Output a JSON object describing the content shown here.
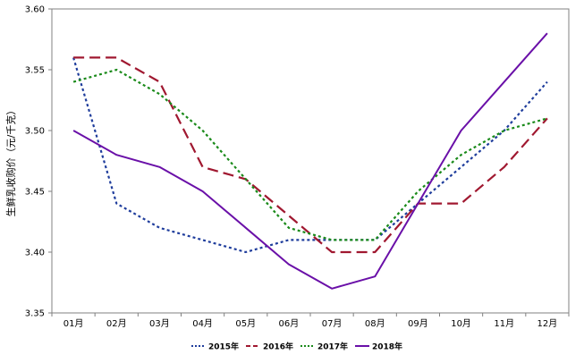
{
  "chart_data": {
    "type": "line",
    "title": "",
    "xlabel": "",
    "ylabel": "生鲜乳收购价（元/千克）",
    "categories": [
      "01月",
      "02月",
      "03月",
      "04月",
      "05月",
      "06月",
      "07月",
      "08月",
      "09月",
      "10月",
      "11月",
      "12月"
    ],
    "ylim": [
      3.35,
      3.6
    ],
    "yticks": [
      "3.35",
      "3.40",
      "3.45",
      "3.50",
      "3.55",
      "3.60"
    ],
    "grid": false,
    "legend_position": "bottom",
    "series": [
      {
        "name": "2015年",
        "color": "#1f3d9c",
        "dash": "dotted",
        "values": [
          3.56,
          3.44,
          3.42,
          3.41,
          3.4,
          3.41,
          3.41,
          3.41,
          3.44,
          3.47,
          3.5,
          3.54
        ]
      },
      {
        "name": "2016年",
        "color": "#a01830",
        "dash": "dashed",
        "values": [
          3.56,
          3.56,
          3.54,
          3.47,
          3.46,
          3.43,
          3.4,
          3.4,
          3.44,
          3.44,
          3.47,
          3.51
        ]
      },
      {
        "name": "2017年",
        "color": "#1a8a1a",
        "dash": "dotted",
        "values": [
          3.54,
          3.55,
          3.53,
          3.5,
          3.46,
          3.42,
          3.41,
          3.41,
          3.45,
          3.48,
          3.5,
          3.51
        ]
      },
      {
        "name": "2018年",
        "color": "#6a10a8",
        "dash": "solid",
        "values": [
          3.5,
          3.48,
          3.47,
          3.45,
          3.42,
          3.39,
          3.37,
          3.38,
          3.44,
          3.5,
          3.54,
          3.58
        ]
      }
    ]
  }
}
